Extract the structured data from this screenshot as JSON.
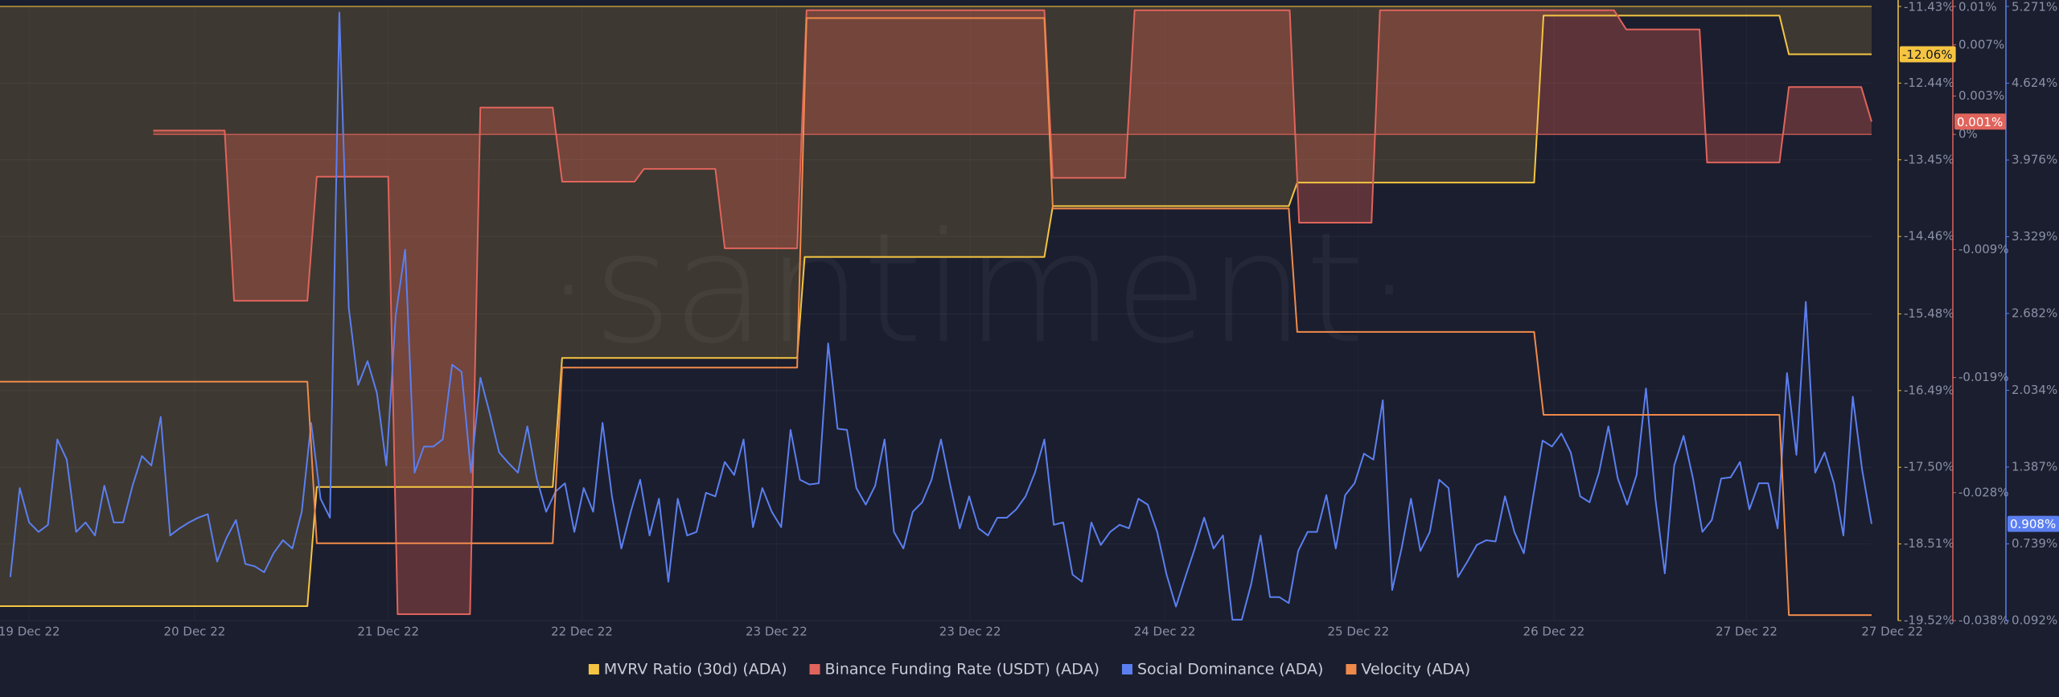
{
  "chart_data": {
    "type": "line",
    "watermark": "·santiment·",
    "xlim": [
      -1.1,
      198
    ],
    "xticks": [
      {
        "value": 2.0,
        "label": "19 Dec 22"
      },
      {
        "value": 19.6,
        "label": "20 Dec 22"
      },
      {
        "value": 40.2,
        "label": "21 Dec 22"
      },
      {
        "value": 60.8,
        "label": "22 Dec 22"
      },
      {
        "value": 81.5,
        "label": "23 Dec 22"
      },
      {
        "value": 102.1,
        "label": "23 Dec 22"
      },
      {
        "value": 122.8,
        "label": "24 Dec 22"
      },
      {
        "value": 143.4,
        "label": "25 Dec 22"
      },
      {
        "value": 164.2,
        "label": "26 Dec 22"
      },
      {
        "value": 184.7,
        "label": "27 Dec 22"
      },
      {
        "value": 200.2,
        "label": "27 Dec 22"
      }
    ],
    "ylim": [
      -19.52,
      -11.43
    ],
    "yticks": [
      {
        "value": -11.43,
        "label": "-11.43%"
      },
      {
        "value": -12.44,
        "label": "-12.44%"
      },
      {
        "value": -13.45,
        "label": "-13.45%"
      },
      {
        "value": -14.46,
        "label": "-14.46%"
      },
      {
        "value": -15.48,
        "label": "-15.48%"
      },
      {
        "value": -16.49,
        "label": "-16.49%"
      },
      {
        "value": -17.5,
        "label": "-17.50%"
      },
      {
        "value": -18.51,
        "label": "-18.51%"
      },
      {
        "value": -19.52,
        "label": "-19.52%"
      }
    ],
    "y2lim": [
      -0.038,
      0.01
    ],
    "y2ticks": [
      {
        "value": 0.01,
        "label": "0.01%"
      },
      {
        "value": 0.007,
        "label": "0.007%"
      },
      {
        "value": 0.003,
        "label": "0.003%"
      },
      {
        "value": 0,
        "label": "0%"
      },
      {
        "value": -0.009,
        "label": "-0.009%"
      },
      {
        "value": -0.019,
        "label": "-0.019%"
      },
      {
        "value": -0.028,
        "label": "-0.028%"
      },
      {
        "value": -0.038,
        "label": "-0.038%"
      }
    ],
    "y3lim": [
      0.092,
      5.271
    ],
    "y3ticks": [
      {
        "value": 5.271,
        "label": "5.271%"
      },
      {
        "value": 4.624,
        "label": "4.624%"
      },
      {
        "value": 3.976,
        "label": "3.976%"
      },
      {
        "value": 3.329,
        "label": "3.329%"
      },
      {
        "value": 2.682,
        "label": "2.682%"
      },
      {
        "value": 2.034,
        "label": "2.034%"
      },
      {
        "value": 1.387,
        "label": "1.387%"
      },
      {
        "value": 0.739,
        "label": "0.739%"
      },
      {
        "value": 0.092,
        "label": "0.092%"
      }
    ],
    "y4lim": [
      0,
      1
    ],
    "grid": true,
    "series": [
      {
        "name": "MVRV Ratio (30d) (ADA)",
        "color": "#f5c542",
        "axis": "y",
        "fill": "rgba(245,190,70,0.16)",
        "last_label": "-12.06%",
        "x": [
          -1.1,
          31.6,
          32.6,
          57.7,
          58.7,
          83.7,
          84.5,
          110,
          110.9,
          136,
          136.9,
          162.1,
          163.1,
          188.2,
          189.2,
          198
        ],
        "values": [
          -19.33,
          -19.33,
          -17.76,
          -17.76,
          -16.06,
          -16.06,
          -14.73,
          -14.73,
          -14.06,
          -14.06,
          -13.75,
          -13.75,
          -11.55,
          -11.55,
          -12.06,
          -12.06
        ]
      },
      {
        "name": "Binance Funding Rate (USDT) (ADA)",
        "color": "#e0645c",
        "axis": "y2",
        "fill": "rgba(230,95,80,0.32)",
        "last_label": "0.001%",
        "x": [
          15.2,
          22.8,
          23.8,
          31.6,
          32.6,
          40.2,
          41.2,
          48.9,
          50,
          57.7,
          58.7,
          66.4,
          67.4,
          75,
          76,
          83.7,
          84.7,
          110,
          110.9,
          118.6,
          119.6,
          136.1,
          137.1,
          144.8,
          145.7,
          170.6,
          171.9,
          179.7,
          180.5,
          188.2,
          189.2,
          196.9,
          198
        ],
        "values": [
          0.0003,
          0.0003,
          -0.013,
          -0.013,
          -0.0033,
          -0.0033,
          -0.0375,
          -0.0375,
          0.0021,
          0.0021,
          -0.0037,
          -0.0037,
          -0.0027,
          -0.0027,
          -0.0089,
          -0.0089,
          0.0097,
          0.0097,
          -0.0034,
          -0.0034,
          0.0097,
          0.0097,
          -0.0069,
          -0.0069,
          0.0097,
          0.0097,
          0.0082,
          0.0082,
          -0.0022,
          -0.0022,
          0.0037,
          0.0037,
          0.001
        ]
      },
      {
        "name": "Social Dominance (ADA)",
        "color": "#5b7ff0",
        "axis": "y3",
        "last_label": "0.908%",
        "values": [
          0.46,
          1.21,
          0.92,
          0.84,
          0.9,
          1.62,
          1.45,
          0.84,
          0.92,
          0.81,
          1.23,
          0.92,
          0.92,
          1.23,
          1.48,
          1.4,
          1.81,
          0.81,
          0.87,
          0.92,
          0.96,
          0.99,
          0.59,
          0.79,
          0.94,
          0.57,
          0.55,
          0.5,
          0.66,
          0.77,
          0.7,
          1.01,
          1.76,
          1.12,
          0.96,
          5.22,
          2.73,
          2.08,
          2.28,
          2.01,
          1.4,
          2.67,
          3.22,
          1.34,
          1.56,
          1.56,
          1.62,
          2.25,
          2.19,
          1.34,
          2.14,
          1.84,
          1.51,
          1.42,
          1.34,
          1.73,
          1.29,
          1.01,
          1.18,
          1.25,
          0.84,
          1.21,
          1.01,
          1.76,
          1.14,
          0.7,
          1.01,
          1.28,
          0.81,
          1.12,
          0.42,
          1.12,
          0.81,
          0.84,
          1.17,
          1.14,
          1.43,
          1.32,
          1.62,
          0.88,
          1.21,
          1.01,
          0.88,
          1.7,
          1.28,
          1.24,
          1.25,
          2.43,
          1.71,
          1.7,
          1.21,
          1.07,
          1.23,
          1.62,
          0.84,
          0.7,
          1.01,
          1.09,
          1.28,
          1.62,
          1.23,
          0.87,
          1.14,
          0.87,
          0.81,
          0.96,
          0.96,
          1.03,
          1.14,
          1.34,
          1.62,
          0.9,
          0.92,
          0.48,
          0.42,
          0.92,
          0.73,
          0.84,
          0.9,
          0.87,
          1.12,
          1.07,
          0.84,
          0.48,
          0.21,
          0.46,
          0.7,
          0.96,
          0.7,
          0.81,
          0.1,
          0.1,
          0.4,
          0.81,
          0.29,
          0.29,
          0.24,
          0.68,
          0.84,
          0.84,
          1.15,
          0.7,
          1.15,
          1.25,
          1.5,
          1.45,
          1.95,
          0.35,
          0.7,
          1.12,
          0.68,
          0.84,
          1.28,
          1.21,
          0.46,
          0.59,
          0.73,
          0.77,
          0.76,
          1.14,
          0.84,
          0.66,
          1.14,
          1.61,
          1.56,
          1.67,
          1.51,
          1.14,
          1.09,
          1.34,
          1.73,
          1.29,
          1.07,
          1.32,
          2.05,
          1.12,
          0.49,
          1.4,
          1.65,
          1.29,
          0.84,
          0.94,
          1.29,
          1.3,
          1.43,
          1.03,
          1.25,
          1.25,
          0.87,
          2.18,
          1.49,
          2.78,
          1.34,
          1.51,
          1.25,
          0.81,
          1.98,
          1.36,
          0.908
        ]
      },
      {
        "name": "Velocity (ADA)",
        "color": "#f08a4b",
        "axis": "y4",
        "x": [
          -1.1,
          31.6,
          32.6,
          57.7,
          58.7,
          83.7,
          84.7,
          110,
          110.9,
          136,
          136.9,
          162.1,
          163.1,
          188.2,
          189.2,
          198
        ],
        "values": [
          0.389,
          0.389,
          0.126,
          0.126,
          0.412,
          0.412,
          0.981,
          0.981,
          0.671,
          0.671,
          0.47,
          0.47,
          0.335,
          0.335,
          0.009,
          0.009
        ]
      }
    ]
  }
}
